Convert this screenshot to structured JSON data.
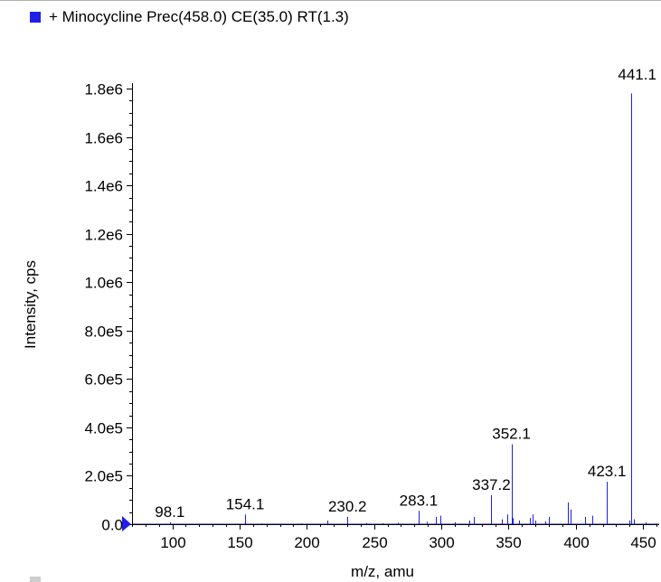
{
  "legend": {
    "label": "+ Minocycline Prec(458.0) CE(35.0) RT(1.3)",
    "color": "#1f1fe6"
  },
  "chart_data": {
    "type": "bar",
    "title": "+ Minocycline Prec(458.0) CE(35.0) RT(1.3)",
    "xlabel": "m/z, amu",
    "ylabel": "Intensity, cps",
    "xlim": [
      70,
      462
    ],
    "ylim": [
      0,
      1800000
    ],
    "xticks": [
      100,
      150,
      200,
      250,
      300,
      350,
      400,
      450
    ],
    "yticks": [
      0,
      200000,
      400000,
      600000,
      800000,
      1000000,
      1200000,
      1400000,
      1600000,
      1800000
    ],
    "ytick_labels": [
      "0.0",
      "2.0e5",
      "4.0e5",
      "6.0e5",
      "8.0e5",
      "1.0e6",
      "1.2e6",
      "1.4e6",
      "1.6e6",
      "1.8e6"
    ],
    "peak_labels": [
      {
        "x": 98.1,
        "label": "98.1"
      },
      {
        "x": 154.1,
        "label": "154.1"
      },
      {
        "x": 230.2,
        "label": "230.2"
      },
      {
        "x": 283.1,
        "label": "283.1"
      },
      {
        "x": 337.2,
        "label": "337.2"
      },
      {
        "x": 352.1,
        "label": "352.1"
      },
      {
        "x": 423.1,
        "label": "423.1"
      },
      {
        "x": 441.1,
        "label": "441.1"
      }
    ],
    "peaks": [
      [
        83,
        2000
      ],
      [
        98.1,
        8000
      ],
      [
        108,
        2000
      ],
      [
        124,
        2000
      ],
      [
        139,
        2000
      ],
      [
        154.1,
        40000
      ],
      [
        166,
        3000
      ],
      [
        181,
        2000
      ],
      [
        196,
        3000
      ],
      [
        215,
        15000
      ],
      [
        230.2,
        30000
      ],
      [
        244,
        5000
      ],
      [
        256,
        4000
      ],
      [
        268,
        6000
      ],
      [
        283.1,
        55000
      ],
      [
        289,
        10000
      ],
      [
        296,
        30000
      ],
      [
        299,
        35000
      ],
      [
        310,
        8000
      ],
      [
        321,
        15000
      ],
      [
        324,
        30000
      ],
      [
        337.2,
        120000
      ],
      [
        345,
        20000
      ],
      [
        349,
        40000
      ],
      [
        352.1,
        330000
      ],
      [
        353,
        25000
      ],
      [
        358,
        15000
      ],
      [
        366,
        25000
      ],
      [
        368,
        40000
      ],
      [
        370,
        15000
      ],
      [
        377,
        12000
      ],
      [
        380,
        30000
      ],
      [
        394,
        90000
      ],
      [
        396,
        60000
      ],
      [
        407,
        30000
      ],
      [
        412,
        35000
      ],
      [
        423.1,
        175000
      ],
      [
        440,
        15000
      ],
      [
        441.1,
        1780000
      ],
      [
        443,
        20000
      ],
      [
        452,
        8000
      ],
      [
        459,
        3000
      ]
    ]
  }
}
